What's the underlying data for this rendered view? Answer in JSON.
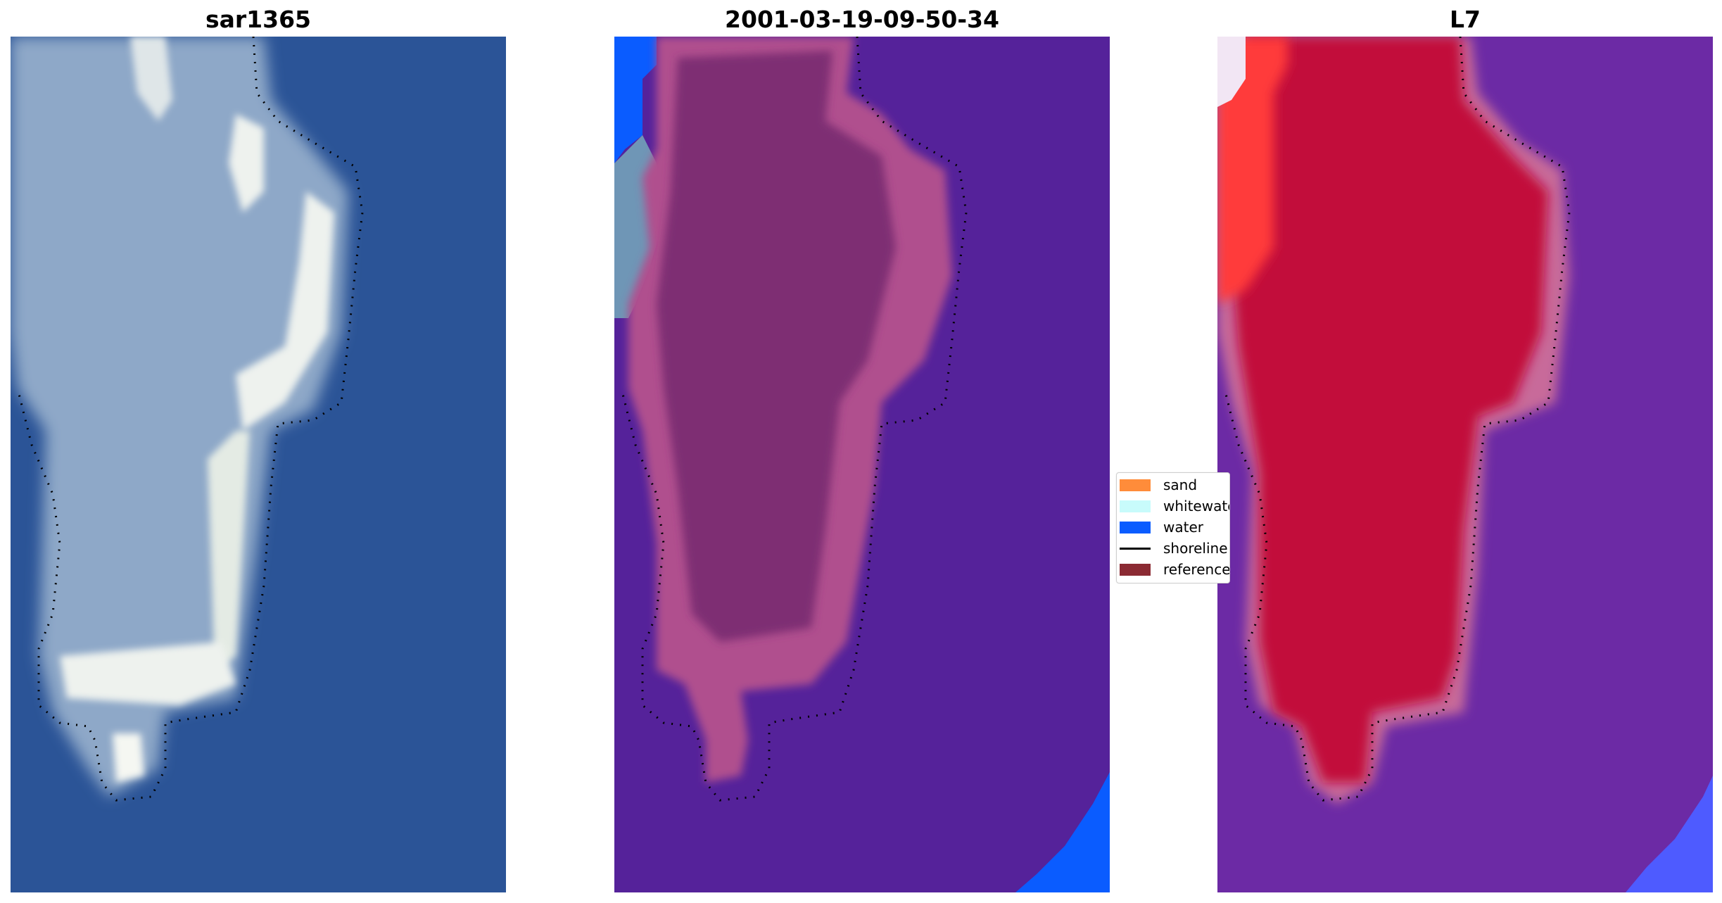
{
  "panels": [
    {
      "title": "sar1365",
      "style": "rgb"
    },
    {
      "title": "2001-03-19-09-50-34",
      "style": "classified"
    },
    {
      "title": "L7",
      "style": "index"
    }
  ],
  "legend": {
    "items": [
      {
        "label": "sand",
        "color": "#ff8c3a",
        "kind": "patch"
      },
      {
        "label": "whitewater",
        "color": "#c8fbfb",
        "kind": "patch"
      },
      {
        "label": "water",
        "color": "#0a5cff",
        "kind": "patch"
      },
      {
        "label": "shoreline",
        "color": "#000000",
        "kind": "line"
      },
      {
        "label": "reference",
        "color": "#8b2a33",
        "kind": "patch"
      }
    ]
  },
  "colors": {
    "sea_rgb": "#2b5497",
    "island_rgb": "#8ea8c8",
    "surf_rgb": "#eef2ee",
    "class_water_bg": "#55229a",
    "class_land": "#7e2e73",
    "class_land_edge": "#b0508e",
    "class_water_blue": "#0a5cff",
    "index_bg": "#6c2aa5",
    "index_land": "#c2083a",
    "index_edge": "#c86a9a",
    "index_red_bright": "#ff3a3a",
    "index_blue": "#4e5bff"
  }
}
